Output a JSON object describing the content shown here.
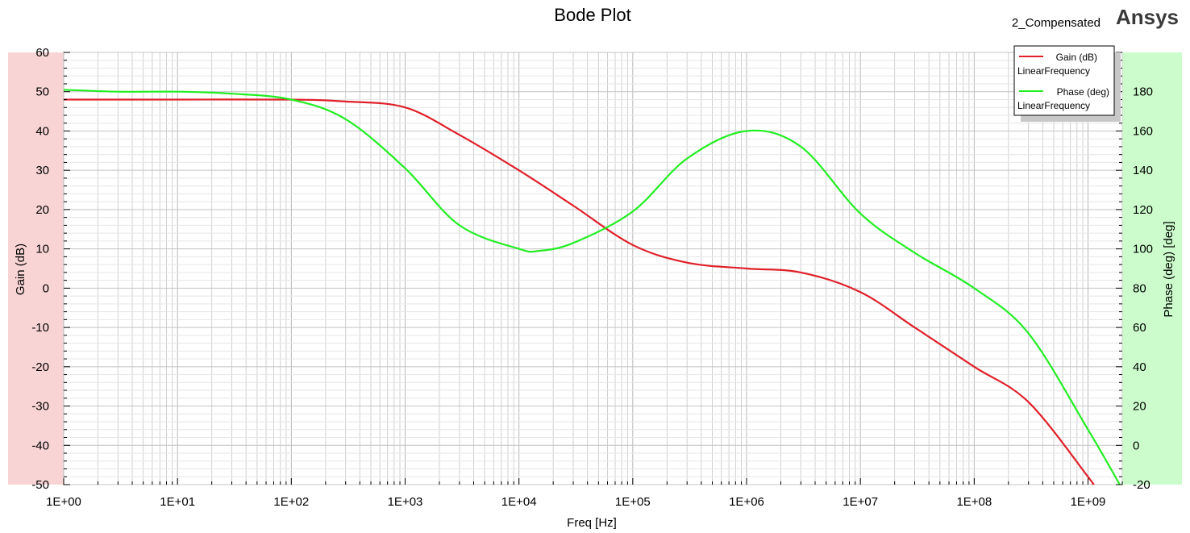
{
  "brand": "Ansys",
  "design_name": "2_Compensated",
  "colors": {
    "gain": "#e0202a",
    "phase": "#22ee22",
    "left_band": "#f8d4d4",
    "right_band": "#ccfccc",
    "grid": "#d0d0d0"
  },
  "chart_data": {
    "type": "line",
    "title": "Bode Plot",
    "xlabel": "Freq [Hz]",
    "ylabel": "Gain (dB)",
    "y2label": "Phase (deg) [deg]",
    "xscale": "log",
    "xlim": [
      1,
      2000000000
    ],
    "ylim": [
      -50,
      60
    ],
    "y2lim": [
      -20,
      200
    ],
    "grid": true,
    "legend_placement": "top-right",
    "x_tick_labels": [
      "1E+00",
      "1E+01",
      "1E+02",
      "1E+03",
      "1E+04",
      "1E+05",
      "1E+06",
      "1E+07",
      "1E+08",
      "1E+09"
    ],
    "y_tick_labels": [
      "60",
      "50",
      "40",
      "30",
      "20",
      "10",
      "0",
      "-10",
      "-20",
      "-30",
      "-40",
      "-50"
    ],
    "y2_tick_labels": [
      "180",
      "160",
      "140",
      "120",
      "100",
      "80",
      "60",
      "40",
      "20",
      "0",
      "-20"
    ],
    "series": [
      {
        "name": "Gain (dB)",
        "legend_sub": "LinearFrequency",
        "axis": "left",
        "x": [
          1,
          10,
          100,
          300,
          1000,
          3000,
          10000,
          30000,
          100000,
          300000,
          1000000,
          3000000,
          10000000,
          30000000,
          100000000,
          300000000,
          1000000000,
          1100000000
        ],
        "values": [
          48,
          48,
          48,
          47.5,
          46,
          39,
          30,
          21,
          11,
          6.5,
          5,
          4,
          -1,
          -10,
          -20,
          -29,
          -48,
          -50
        ]
      },
      {
        "name": "Phase (deg)",
        "legend_sub": "LinearFrequency",
        "axis": "right",
        "x": [
          1,
          3,
          10,
          30,
          100,
          300,
          1000,
          3000,
          10000,
          15000,
          30000,
          100000,
          300000,
          1000000,
          3000000,
          10000000,
          30000000,
          100000000,
          300000000,
          1000000000,
          1900000000
        ],
        "values": [
          181,
          180,
          180,
          179,
          176,
          166,
          141,
          112,
          100,
          99,
          103,
          119,
          146,
          160,
          152,
          118,
          98,
          80,
          57,
          8,
          -20
        ]
      }
    ]
  }
}
